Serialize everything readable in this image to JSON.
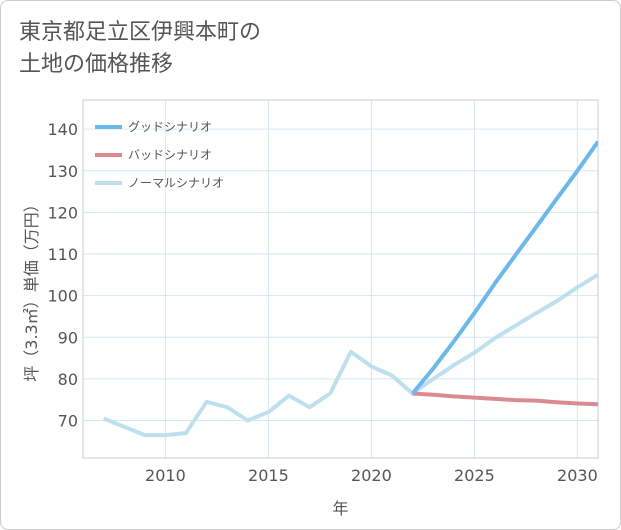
{
  "title": "東京都足立区伊興本町の\n土地の価格推移",
  "chart_data": {
    "type": "line",
    "title": "東京都足立区伊興本町の土地の価格推移",
    "xlabel": "年",
    "ylabel": "坪（3.3㎡）単価（万円）",
    "xlim": [
      2006,
      2031
    ],
    "ylim": [
      61,
      147
    ],
    "xticks": [
      2010,
      2015,
      2020,
      2025,
      2030
    ],
    "yticks": [
      70,
      80,
      90,
      100,
      110,
      120,
      130,
      140
    ],
    "legend_position": "top-left",
    "series": [
      {
        "name": "グッドシナリオ",
        "color": "#6cb8ea",
        "points": [
          [
            2022,
            76.5
          ],
          [
            2023,
            82.5
          ],
          [
            2024,
            89
          ],
          [
            2025,
            95.8
          ],
          [
            2026,
            103
          ],
          [
            2027,
            109.8
          ],
          [
            2028,
            116.5
          ],
          [
            2029,
            123.3
          ],
          [
            2030,
            130
          ],
          [
            2031,
            137
          ]
        ]
      },
      {
        "name": "バッドシナリオ",
        "color": "#dc8a92",
        "points": [
          [
            2022,
            76.5
          ],
          [
            2023,
            76.2
          ],
          [
            2024,
            75.8
          ],
          [
            2025,
            75.5
          ],
          [
            2026,
            75.2
          ],
          [
            2027,
            74.9
          ],
          [
            2028,
            74.8
          ],
          [
            2029,
            74.4
          ],
          [
            2030,
            74.1
          ],
          [
            2031,
            73.9
          ]
        ]
      },
      {
        "name": "ノーマルシナリオ",
        "color": "#bde0ee",
        "points": [
          [
            2007,
            70.5
          ],
          [
            2008,
            68.5
          ],
          [
            2009,
            66.5
          ],
          [
            2010,
            66.5
          ],
          [
            2011,
            67
          ],
          [
            2012,
            74.5
          ],
          [
            2013,
            73.2
          ],
          [
            2014,
            70
          ],
          [
            2015,
            72
          ],
          [
            2016,
            76
          ],
          [
            2017,
            73.2
          ],
          [
            2018,
            76.5
          ],
          [
            2019,
            86.5
          ],
          [
            2020,
            83
          ],
          [
            2021,
            80.8
          ],
          [
            2022,
            76.5
          ],
          [
            2023,
            80
          ],
          [
            2024,
            83.3
          ],
          [
            2025,
            86.3
          ],
          [
            2026,
            89.8
          ],
          [
            2027,
            92.8
          ],
          [
            2028,
            95.8
          ],
          [
            2029,
            98.7
          ],
          [
            2030,
            102
          ],
          [
            2031,
            105
          ]
        ]
      }
    ]
  }
}
